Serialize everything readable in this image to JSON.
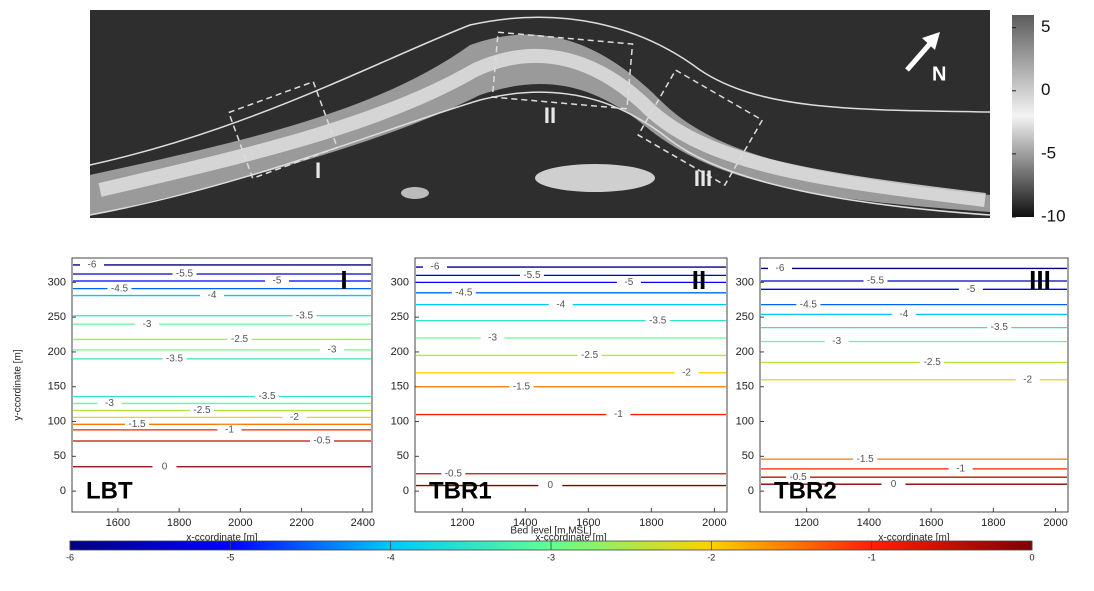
{
  "chart_data": [
    {
      "type": "map",
      "labels": [
        "I",
        "II",
        "III"
      ],
      "north": "N",
      "clim": [
        -10,
        6
      ],
      "cticks": [
        5,
        0,
        -5,
        -10
      ],
      "colormap": [
        "#101010",
        "#f4f4f4",
        "#5c5c5c"
      ]
    },
    {
      "type": "contour",
      "name": "LBT",
      "panel": "I",
      "xlabel": "x-ccordinate [m]",
      "ylabel": "y-ccordinate [m]",
      "xlim": [
        1450,
        2430
      ],
      "ylim": [
        -30,
        335
      ],
      "xticks": [
        1600,
        1800,
        2000,
        2200,
        2400
      ],
      "yticks": [
        0,
        50,
        100,
        150,
        200,
        250,
        300
      ],
      "contours": [
        {
          "level": -6,
          "y": 325
        },
        {
          "level": -5.5,
          "y": 312
        },
        {
          "level": -5,
          "y": 302
        },
        {
          "level": -4.5,
          "y": 291
        },
        {
          "level": -4,
          "y": 281
        },
        {
          "level": -3.5,
          "y": 252
        },
        {
          "level": -3,
          "y": 240
        },
        {
          "level": -2.5,
          "y": 218
        },
        {
          "level": -3,
          "y": 203
        },
        {
          "level": -3.5,
          "y": 190
        },
        {
          "level": -3.5,
          "y": 136
        },
        {
          "level": -3,
          "y": 126
        },
        {
          "level": -2.5,
          "y": 116
        },
        {
          "level": -2,
          "y": 106
        },
        {
          "level": -1.5,
          "y": 96
        },
        {
          "level": -1,
          "y": 88
        },
        {
          "level": -0.5,
          "y": 72
        },
        {
          "level": 0,
          "y": 35
        }
      ]
    },
    {
      "type": "contour",
      "name": "TBR1",
      "panel": "II",
      "xlabel": "x-ccordinate [m]",
      "xlim": [
        1050,
        2040
      ],
      "ylim": [
        -30,
        335
      ],
      "xticks": [
        1200,
        1400,
        1600,
        1800,
        2000
      ],
      "yticks": [
        0,
        50,
        100,
        150,
        200,
        250,
        300
      ],
      "contours": [
        {
          "level": -6,
          "y": 322
        },
        {
          "level": -5.5,
          "y": 310
        },
        {
          "level": -5,
          "y": 300
        },
        {
          "level": -4.5,
          "y": 285
        },
        {
          "level": -4,
          "y": 268
        },
        {
          "level": -3.5,
          "y": 245
        },
        {
          "level": -3,
          "y": 220
        },
        {
          "level": -2.5,
          "y": 195
        },
        {
          "level": -2,
          "y": 170
        },
        {
          "level": -1.5,
          "y": 150
        },
        {
          "level": -1,
          "y": 110
        },
        {
          "level": -0.5,
          "y": 25
        },
        {
          "level": 0,
          "y": 8
        }
      ]
    },
    {
      "type": "contour",
      "name": "TBR2",
      "panel": "III",
      "xlabel": "x-ccordinate [m]",
      "xlim": [
        1050,
        2040
      ],
      "ylim": [
        -30,
        335
      ],
      "xticks": [
        1200,
        1400,
        1600,
        1800,
        2000
      ],
      "yticks": [
        0,
        50,
        100,
        150,
        200,
        250,
        300
      ],
      "contours": [
        {
          "level": -6,
          "y": 320
        },
        {
          "level": -5.5,
          "y": 302
        },
        {
          "level": -5,
          "y": 290
        },
        {
          "level": -4.5,
          "y": 268
        },
        {
          "level": -4,
          "y": 254
        },
        {
          "level": -3.5,
          "y": 235
        },
        {
          "level": -3,
          "y": 215
        },
        {
          "level": -2.5,
          "y": 185
        },
        {
          "level": -2,
          "y": 160
        },
        {
          "level": -1.5,
          "y": 46
        },
        {
          "level": -1,
          "y": 32
        },
        {
          "level": -0.5,
          "y": 20
        },
        {
          "level": 0,
          "y": 10
        }
      ]
    },
    {
      "type": "colorbar",
      "label": "Bed level [m MSL]",
      "xlim": [
        -6,
        0
      ],
      "xticks": [
        -6,
        -5,
        -4,
        -3,
        -2,
        -1,
        0
      ],
      "colormap": [
        "#000080",
        "#0000ff",
        "#00c8ff",
        "#60ff90",
        "#ffd000",
        "#ff2000",
        "#800000"
      ]
    }
  ]
}
